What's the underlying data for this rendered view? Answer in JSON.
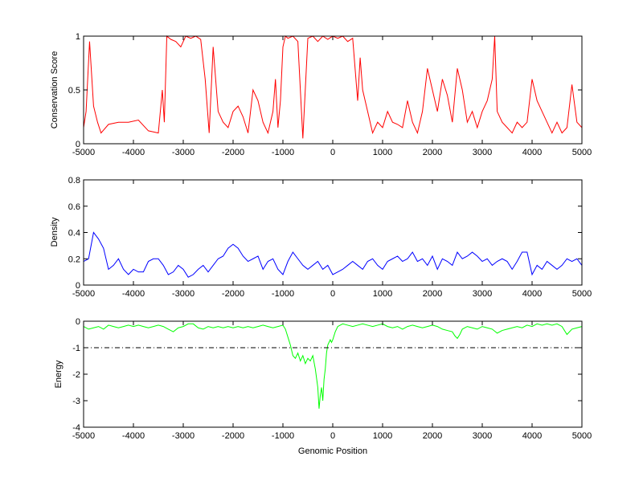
{
  "chart_data": [
    {
      "type": "line",
      "ylabel": "Conservation Score",
      "xlim": [
        -5000,
        5000
      ],
      "ylim": [
        0,
        1
      ],
      "xticks": [
        -5000,
        -4000,
        -3000,
        -2000,
        -1000,
        0,
        1000,
        2000,
        3000,
        4000,
        5000
      ],
      "yticks": [
        0,
        0.5,
        1
      ],
      "xticklabels": [
        "-5000",
        "-4000",
        "-3000",
        "-2000",
        "-1000",
        "0",
        "1000",
        "2000",
        "3000",
        "4000",
        "5000"
      ],
      "yticklabels": [
        "0",
        "0.5",
        "1"
      ],
      "color": "#ff0000",
      "series": [
        {
          "x": [
            -5000,
            -4950,
            -4880,
            -4800,
            -4720,
            -4650,
            -4500,
            -4300,
            -4100,
            -3900,
            -3700,
            -3500,
            -3420,
            -3380,
            -3330,
            -3250,
            -3150,
            -3050,
            -2950,
            -2850,
            -2750,
            -2650,
            -2560,
            -2480,
            -2400,
            -2300,
            -2200,
            -2100,
            -2000,
            -1900,
            -1800,
            -1700,
            -1600,
            -1500,
            -1400,
            -1300,
            -1200,
            -1150,
            -1100,
            -1050,
            -1000,
            -950,
            -900,
            -800,
            -700,
            -600,
            -500,
            -400,
            -300,
            -200,
            -100,
            0,
            100,
            200,
            300,
            400,
            500,
            550,
            600,
            700,
            800,
            900,
            1000,
            1100,
            1200,
            1300,
            1400,
            1500,
            1600,
            1700,
            1800,
            1900,
            2000,
            2100,
            2200,
            2300,
            2400,
            2500,
            2600,
            2700,
            2800,
            2900,
            3000,
            3100,
            3200,
            3250,
            3300,
            3400,
            3500,
            3600,
            3700,
            3800,
            3900,
            4000,
            4100,
            4200,
            4300,
            4400,
            4500,
            4600,
            4700,
            4800,
            4900,
            5000
          ],
          "y": [
            0.15,
            0.3,
            0.95,
            0.35,
            0.2,
            0.1,
            0.18,
            0.2,
            0.2,
            0.22,
            0.12,
            0.1,
            0.5,
            0.2,
            1.0,
            0.97,
            0.95,
            0.9,
            1.0,
            0.98,
            1.0,
            0.97,
            0.6,
            0.1,
            0.9,
            0.3,
            0.2,
            0.15,
            0.3,
            0.35,
            0.25,
            0.1,
            0.5,
            0.4,
            0.2,
            0.1,
            0.3,
            0.6,
            0.15,
            0.4,
            0.9,
            1.0,
            0.98,
            1.0,
            0.95,
            0.05,
            0.98,
            1.0,
            0.95,
            1.0,
            0.97,
            1.0,
            0.98,
            1.0,
            0.95,
            0.98,
            0.4,
            0.8,
            0.5,
            0.3,
            0.1,
            0.2,
            0.15,
            0.3,
            0.2,
            0.18,
            0.15,
            0.4,
            0.2,
            0.1,
            0.3,
            0.7,
            0.5,
            0.3,
            0.6,
            0.45,
            0.2,
            0.7,
            0.5,
            0.2,
            0.3,
            0.15,
            0.3,
            0.4,
            0.6,
            1.0,
            0.3,
            0.2,
            0.15,
            0.1,
            0.2,
            0.15,
            0.2,
            0.6,
            0.4,
            0.3,
            0.2,
            0.1,
            0.2,
            0.1,
            0.15,
            0.55,
            0.2,
            0.15
          ]
        }
      ]
    },
    {
      "type": "line",
      "ylabel": "Density",
      "xlim": [
        -5000,
        5000
      ],
      "ylim": [
        0,
        0.8
      ],
      "xticks": [
        -5000,
        -4000,
        -3000,
        -2000,
        -1000,
        0,
        1000,
        2000,
        3000,
        4000,
        5000
      ],
      "yticks": [
        0,
        0.2,
        0.4,
        0.6,
        0.8
      ],
      "xticklabels": [
        "-5000",
        "-4000",
        "-3000",
        "-2000",
        "-1000",
        "0",
        "1000",
        "2000",
        "3000",
        "4000",
        "5000"
      ],
      "yticklabels": [
        "0",
        "0.2",
        "0.4",
        "0.6",
        "0.8"
      ],
      "color": "#0000ff",
      "series": [
        {
          "x": [
            -5000,
            -4900,
            -4800,
            -4700,
            -4600,
            -4500,
            -4400,
            -4300,
            -4200,
            -4100,
            -4000,
            -3900,
            -3800,
            -3700,
            -3600,
            -3500,
            -3400,
            -3300,
            -3200,
            -3100,
            -3000,
            -2900,
            -2800,
            -2700,
            -2600,
            -2500,
            -2400,
            -2300,
            -2200,
            -2100,
            -2000,
            -1900,
            -1800,
            -1700,
            -1600,
            -1500,
            -1400,
            -1300,
            -1200,
            -1100,
            -1000,
            -900,
            -800,
            -700,
            -600,
            -500,
            -400,
            -300,
            -200,
            -100,
            0,
            100,
            200,
            300,
            400,
            500,
            600,
            700,
            800,
            900,
            1000,
            1100,
            1200,
            1300,
            1400,
            1500,
            1600,
            1700,
            1800,
            1900,
            2000,
            2100,
            2200,
            2300,
            2400,
            2500,
            2600,
            2700,
            2800,
            2900,
            3000,
            3100,
            3200,
            3300,
            3400,
            3500,
            3600,
            3700,
            3800,
            3900,
            4000,
            4100,
            4200,
            4300,
            4400,
            4500,
            4600,
            4700,
            4800,
            4900,
            5000
          ],
          "y": [
            0.18,
            0.2,
            0.4,
            0.35,
            0.28,
            0.12,
            0.15,
            0.2,
            0.12,
            0.08,
            0.12,
            0.1,
            0.1,
            0.18,
            0.2,
            0.2,
            0.15,
            0.08,
            0.1,
            0.15,
            0.12,
            0.06,
            0.08,
            0.12,
            0.15,
            0.1,
            0.15,
            0.2,
            0.22,
            0.28,
            0.31,
            0.28,
            0.22,
            0.18,
            0.2,
            0.22,
            0.12,
            0.18,
            0.2,
            0.12,
            0.08,
            0.18,
            0.25,
            0.2,
            0.15,
            0.12,
            0.15,
            0.18,
            0.12,
            0.15,
            0.08,
            0.1,
            0.12,
            0.15,
            0.18,
            0.15,
            0.12,
            0.18,
            0.2,
            0.15,
            0.12,
            0.18,
            0.2,
            0.22,
            0.18,
            0.2,
            0.25,
            0.18,
            0.2,
            0.15,
            0.22,
            0.12,
            0.2,
            0.18,
            0.15,
            0.25,
            0.2,
            0.22,
            0.25,
            0.22,
            0.18,
            0.2,
            0.15,
            0.18,
            0.2,
            0.18,
            0.12,
            0.18,
            0.25,
            0.25,
            0.08,
            0.15,
            0.12,
            0.18,
            0.15,
            0.12,
            0.15,
            0.2,
            0.18,
            0.2,
            0.15
          ]
        }
      ]
    },
    {
      "type": "line",
      "xlabel": "Genomic Position",
      "ylabel": "Energy",
      "xlim": [
        -5000,
        5000
      ],
      "ylim": [
        -4,
        0
      ],
      "xticks": [
        -5000,
        -4000,
        -3000,
        -2000,
        -1000,
        0,
        1000,
        2000,
        3000,
        4000,
        5000
      ],
      "yticks": [
        -4,
        -3,
        -2,
        -1,
        0
      ],
      "xticklabels": [
        "-5000",
        "-4000",
        "-3000",
        "-2000",
        "-1000",
        "0",
        "1000",
        "2000",
        "3000",
        "4000",
        "5000"
      ],
      "yticklabels": [
        "-4",
        "-3",
        "-2",
        "-1",
        "0"
      ],
      "color": "#00ff00",
      "threshold": -1,
      "threshold_color": "#000000",
      "series": [
        {
          "x": [
            -5000,
            -4900,
            -4800,
            -4700,
            -4600,
            -4500,
            -4400,
            -4300,
            -4200,
            -4100,
            -4000,
            -3900,
            -3800,
            -3700,
            -3600,
            -3500,
            -3400,
            -3300,
            -3200,
            -3100,
            -3000,
            -2900,
            -2800,
            -2700,
            -2600,
            -2500,
            -2400,
            -2300,
            -2200,
            -2100,
            -2000,
            -1900,
            -1800,
            -1700,
            -1600,
            -1500,
            -1400,
            -1300,
            -1200,
            -1100,
            -1000,
            -950,
            -900,
            -850,
            -800,
            -750,
            -700,
            -650,
            -600,
            -550,
            -500,
            -450,
            -400,
            -350,
            -300,
            -275,
            -250,
            -225,
            -200,
            -175,
            -150,
            -125,
            -100,
            -75,
            -50,
            -25,
            0,
            50,
            100,
            200,
            300,
            400,
            500,
            600,
            700,
            800,
            900,
            1000,
            1100,
            1200,
            1300,
            1400,
            1500,
            1600,
            1700,
            1800,
            1900,
            2000,
            2100,
            2200,
            2300,
            2400,
            2450,
            2500,
            2550,
            2600,
            2700,
            2800,
            2900,
            3000,
            3100,
            3200,
            3300,
            3400,
            3500,
            3600,
            3700,
            3800,
            3900,
            4000,
            4100,
            4200,
            4300,
            4400,
            4500,
            4600,
            4700,
            4800,
            4900,
            5000
          ],
          "y": [
            -0.2,
            -0.3,
            -0.25,
            -0.2,
            -0.3,
            -0.15,
            -0.2,
            -0.25,
            -0.2,
            -0.15,
            -0.2,
            -0.15,
            -0.2,
            -0.25,
            -0.2,
            -0.15,
            -0.2,
            -0.3,
            -0.4,
            -0.25,
            -0.2,
            -0.1,
            -0.1,
            -0.25,
            -0.3,
            -0.2,
            -0.25,
            -0.2,
            -0.25,
            -0.2,
            -0.25,
            -0.2,
            -0.25,
            -0.2,
            -0.25,
            -0.2,
            -0.15,
            -0.2,
            -0.25,
            -0.2,
            -0.15,
            -0.3,
            -0.6,
            -0.9,
            -1.3,
            -1.4,
            -1.2,
            -1.5,
            -1.3,
            -1.6,
            -1.4,
            -1.5,
            -1.3,
            -1.8,
            -2.5,
            -3.3,
            -2.8,
            -2.5,
            -3.0,
            -2.2,
            -1.8,
            -1.2,
            -0.9,
            -0.8,
            -0.7,
            -0.8,
            -0.7,
            -0.4,
            -0.2,
            -0.1,
            -0.15,
            -0.2,
            -0.15,
            -0.1,
            -0.15,
            -0.2,
            -0.15,
            -0.1,
            -0.2,
            -0.25,
            -0.2,
            -0.3,
            -0.2,
            -0.15,
            -0.2,
            -0.25,
            -0.2,
            -0.15,
            -0.2,
            -0.3,
            -0.35,
            -0.4,
            -0.55,
            -0.65,
            -0.5,
            -0.3,
            -0.2,
            -0.25,
            -0.3,
            -0.2,
            -0.25,
            -0.3,
            -0.45,
            -0.35,
            -0.3,
            -0.25,
            -0.2,
            -0.25,
            -0.15,
            -0.2,
            -0.1,
            -0.15,
            -0.1,
            -0.15,
            -0.1,
            -0.2,
            -0.5,
            -0.3,
            -0.25,
            -0.2
          ]
        }
      ]
    }
  ]
}
